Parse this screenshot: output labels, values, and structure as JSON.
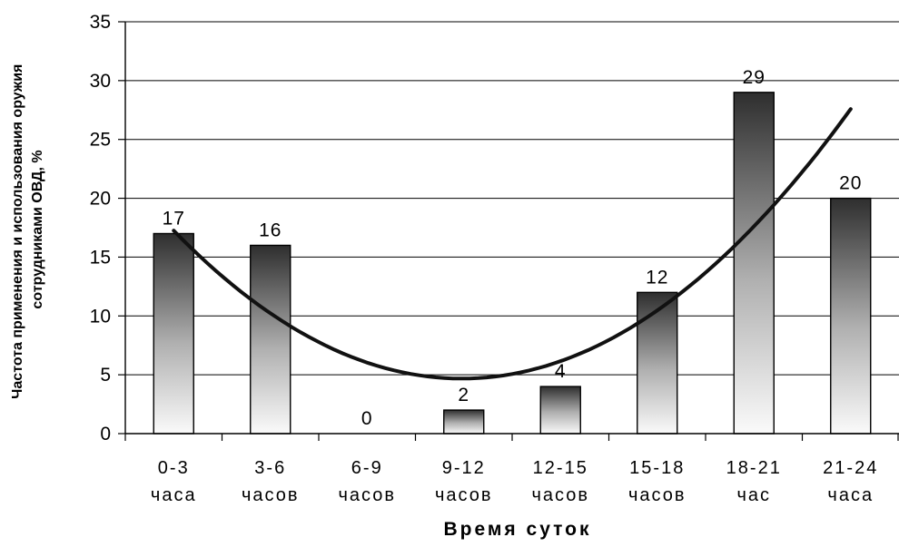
{
  "chart_data": {
    "type": "bar",
    "categories": [
      [
        "0-3",
        "часа"
      ],
      [
        "3-6",
        "часов"
      ],
      [
        "6-9",
        "часов"
      ],
      [
        "9-12",
        "часов"
      ],
      [
        "12-15",
        "часов"
      ],
      [
        "15-18",
        "часов"
      ],
      [
        "18-21",
        "час"
      ],
      [
        "21-24",
        "часа"
      ]
    ],
    "values": [
      17,
      16,
      0,
      2,
      4,
      12,
      29,
      20
    ],
    "data_labels": [
      "17",
      "16",
      "0",
      "2",
      "4",
      "12",
      "29",
      "20"
    ],
    "trendline": {
      "type": "polynomial",
      "order": 2,
      "start": 17.3,
      "end": 27.7
    },
    "xlabel": "Время суток",
    "ylabel_lines": [
      "Частота применения и использования оружия",
      "сотрудниками ОВД, %"
    ],
    "ylim": [
      0,
      35
    ],
    "yticks": [
      "0",
      "5",
      "10",
      "15",
      "20",
      "25",
      "30",
      "35"
    ],
    "grid": true,
    "legend": "none",
    "colors": {
      "bar_top": "#2e2e2e",
      "bar_bottom": "#fafafa",
      "bar_outline": "#000000",
      "trend": "#111111",
      "grid": "#000000"
    }
  }
}
